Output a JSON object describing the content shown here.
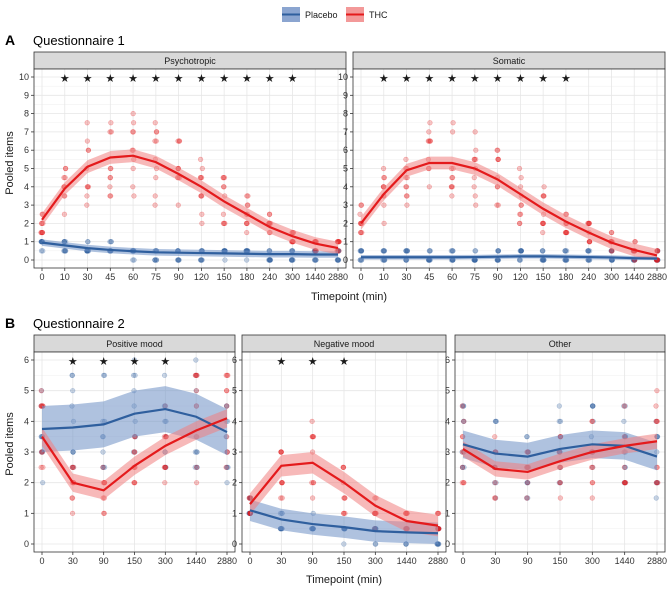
{
  "legend": {
    "entries": [
      {
        "name": "Placebo",
        "color": "#2F5F9E",
        "fill": "#6E8FC4"
      },
      {
        "name": "THC",
        "color": "#E41A1C",
        "fill": "#F08080"
      }
    ]
  },
  "sections": [
    {
      "letter": "A",
      "title": "Questionnaire 1"
    },
    {
      "letter": "B",
      "title": "Questionnaire 2"
    }
  ],
  "chart_data": [
    {
      "type": "line",
      "section": "A",
      "title": "Psychotropic",
      "xlabel": "Timepoint (min)",
      "ylabel": "Pooled items",
      "x": [
        "0",
        "10",
        "30",
        "45",
        "60",
        "75",
        "90",
        "120",
        "150",
        "180",
        "240",
        "300",
        "1440",
        "2880"
      ],
      "ylim": [
        0,
        10
      ],
      "yticks": [
        0,
        1,
        2,
        3,
        4,
        5,
        6,
        7,
        8,
        9,
        10
      ],
      "grid": true,
      "series": [
        {
          "name": "Placebo",
          "values": [
            0.95,
            0.8,
            0.65,
            0.55,
            0.48,
            0.42,
            0.4,
            0.38,
            0.36,
            0.34,
            0.32,
            0.32,
            0.3,
            0.3
          ],
          "band": 0.18
        },
        {
          "name": "THC",
          "values": [
            2.2,
            3.9,
            5.1,
            5.6,
            5.7,
            5.35,
            4.7,
            4.0,
            3.2,
            2.5,
            1.8,
            1.3,
            0.9,
            0.65
          ],
          "band": 0.35
        }
      ],
      "significant": [
        "10",
        "30",
        "45",
        "60",
        "75",
        "90",
        "120",
        "150",
        "180",
        "240",
        "300"
      ]
    },
    {
      "type": "line",
      "section": "A",
      "title": "Somatic",
      "xlabel": "Timepoint (min)",
      "ylabel": "",
      "x": [
        "0",
        "10",
        "30",
        "45",
        "60",
        "75",
        "90",
        "120",
        "150",
        "180",
        "240",
        "300",
        "1440",
        "2880"
      ],
      "ylim": [
        0,
        10
      ],
      "yticks": [
        0,
        1,
        2,
        3,
        4,
        5,
        6,
        7,
        8,
        9,
        10
      ],
      "grid": true,
      "series": [
        {
          "name": "Placebo",
          "values": [
            0.15,
            0.15,
            0.15,
            0.15,
            0.15,
            0.16,
            0.18,
            0.2,
            0.2,
            0.18,
            0.16,
            0.14,
            0.1,
            0.08
          ],
          "band": 0.12
        },
        {
          "name": "THC",
          "values": [
            2.0,
            3.6,
            4.9,
            5.3,
            5.3,
            5.0,
            4.4,
            3.6,
            2.8,
            2.1,
            1.5,
            0.95,
            0.55,
            0.25
          ],
          "band": 0.35
        }
      ],
      "significant": [
        "10",
        "30",
        "45",
        "60",
        "75",
        "90",
        "120",
        "150",
        "180"
      ]
    },
    {
      "type": "line",
      "section": "B",
      "title": "Positive mood",
      "xlabel": "",
      "ylabel": "Pooled items",
      "x": [
        "0",
        "30",
        "90",
        "150",
        "300",
        "1440",
        "2880"
      ],
      "ylim": [
        0,
        6
      ],
      "yticks": [
        0,
        1,
        2,
        3,
        4,
        5,
        6
      ],
      "grid": true,
      "series": [
        {
          "name": "Placebo",
          "values": [
            3.75,
            3.8,
            3.9,
            4.25,
            4.4,
            4.15,
            3.65
          ],
          "band": 0.75
        },
        {
          "name": "THC",
          "values": [
            3.5,
            2.0,
            1.75,
            2.55,
            3.2,
            3.7,
            4.1
          ],
          "band": 0.3
        }
      ],
      "significant": [
        "30",
        "90",
        "150",
        "300"
      ]
    },
    {
      "type": "line",
      "section": "B",
      "title": "Negative mood",
      "xlabel": "Timepoint (min)",
      "ylabel": "",
      "x": [
        "0",
        "30",
        "90",
        "150",
        "300",
        "1440",
        "2880"
      ],
      "ylim": [
        0,
        6
      ],
      "yticks": [
        0,
        1,
        2,
        3,
        4,
        5,
        6
      ],
      "grid": true,
      "series": [
        {
          "name": "Placebo",
          "values": [
            1.1,
            0.8,
            0.65,
            0.55,
            0.42,
            0.38,
            0.35
          ],
          "band": 0.35
        },
        {
          "name": "THC",
          "values": [
            1.3,
            2.55,
            2.65,
            2.0,
            1.25,
            0.75,
            0.6
          ],
          "band": 0.35
        }
      ],
      "significant": [
        "30",
        "90",
        "150"
      ]
    },
    {
      "type": "line",
      "section": "B",
      "title": "Other",
      "xlabel": "",
      "ylabel": "",
      "x": [
        "0",
        "30",
        "90",
        "150",
        "300",
        "1440",
        "2880"
      ],
      "ylim": [
        0,
        6
      ],
      "yticks": [
        0,
        1,
        2,
        3,
        4,
        5,
        6
      ],
      "grid": true,
      "series": [
        {
          "name": "Placebo",
          "values": [
            3.25,
            2.95,
            2.85,
            3.1,
            3.25,
            3.2,
            2.85
          ],
          "band": 0.45
        },
        {
          "name": "THC",
          "values": [
            3.1,
            2.45,
            2.35,
            2.7,
            3.0,
            3.2,
            3.35
          ],
          "band": 0.25
        }
      ],
      "significant": []
    }
  ]
}
